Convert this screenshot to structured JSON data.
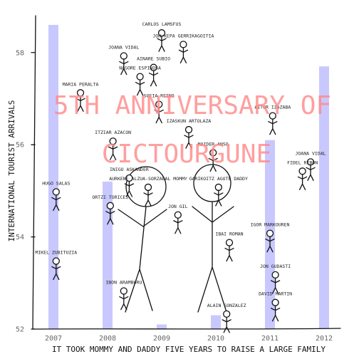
{
  "chart_data": {
    "type": "bar",
    "title_lines": [
      "5TH ANNIVERSARY OF",
      "CICTOURGUNE"
    ],
    "xlabel": "IT TOOK MOMMY AND DADDY FIVE YEARS TO RAISE A LARGE FAMILY",
    "ylabel": "INTERNATIONAL TOURIST ARRIVALS",
    "categories": [
      "2007",
      "2008",
      "2009",
      "2010",
      "2011",
      "2012"
    ],
    "values": [
      58.6,
      55.2,
      52.1,
      52.3,
      56.1,
      57.7
    ],
    "ylim": [
      52,
      58.8
    ],
    "yticks": [
      52,
      54,
      56,
      58
    ],
    "bar_color": "#c8c8ff",
    "title_color": "#ff8a8a",
    "grid": false,
    "people": [
      {
        "name": "CARLOS LAMSFUS",
        "x": 2009.0,
        "y": 58.55
      },
      {
        "name": "JON KEPA GERRIKAGOITIA",
        "x": 2009.4,
        "y": 58.3
      },
      {
        "name": "JOANA VIDAL",
        "x": 2008.3,
        "y": 58.05
      },
      {
        "name": "AINARE SUBIO",
        "x": 2008.85,
        "y": 57.8
      },
      {
        "name": "NAGORE ESPINOSA",
        "x": 2008.6,
        "y": 57.6
      },
      {
        "name": "MARIA PERALTA",
        "x": 2007.5,
        "y": 57.25
      },
      {
        "name": "SOFIA REINO",
        "x": 2008.95,
        "y": 57.0
      },
      {
        "name": "AITOR IZAZABA",
        "x": 2011.05,
        "y": 56.75
      },
      {
        "name": "IZASKUN ARTOLAZA",
        "x": 2009.5,
        "y": 56.45
      },
      {
        "name": "ITZIAR AZACON",
        "x": 2008.1,
        "y": 56.2
      },
      {
        "name": "MAIDER ANSO",
        "x": 2009.95,
        "y": 55.95
      },
      {
        "name": "JOANA VIDAL",
        "x": 2011.75,
        "y": 55.75
      },
      {
        "name": "FIDEL RIBON",
        "x": 2011.6,
        "y": 55.55
      },
      {
        "name": "INIGO ASKANDER",
        "x": 2008.4,
        "y": 55.4
      },
      {
        "name": "AURKENE ALZUA-SORZABAL MOMMY",
        "x": 2008.75,
        "y": 55.2
      },
      {
        "name": "GARIKOITZ AGOTE DADDY",
        "x": 2010.05,
        "y": 55.2
      },
      {
        "name": "HUGO SALAS",
        "x": 2007.05,
        "y": 55.1
      },
      {
        "name": "ORTZI TORICES",
        "x": 2008.05,
        "y": 54.8
      },
      {
        "name": "JON GIL",
        "x": 2009.3,
        "y": 54.6
      },
      {
        "name": "IGOR MARKOUREN",
        "x": 2011.0,
        "y": 54.2
      },
      {
        "name": "IBAI ROMAN",
        "x": 2010.25,
        "y": 54.0
      },
      {
        "name": "MIKEL ZUBITUZIA",
        "x": 2007.05,
        "y": 53.6
      },
      {
        "name": "JON GUDASTI",
        "x": 2011.1,
        "y": 53.3
      },
      {
        "name": "IBON ARAMBURU",
        "x": 2008.3,
        "y": 52.95
      },
      {
        "name": "DAVID MARTIN",
        "x": 2011.1,
        "y": 52.7
      },
      {
        "name": "ALAIN GONZALEZ",
        "x": 2010.2,
        "y": 52.45
      }
    ]
  }
}
